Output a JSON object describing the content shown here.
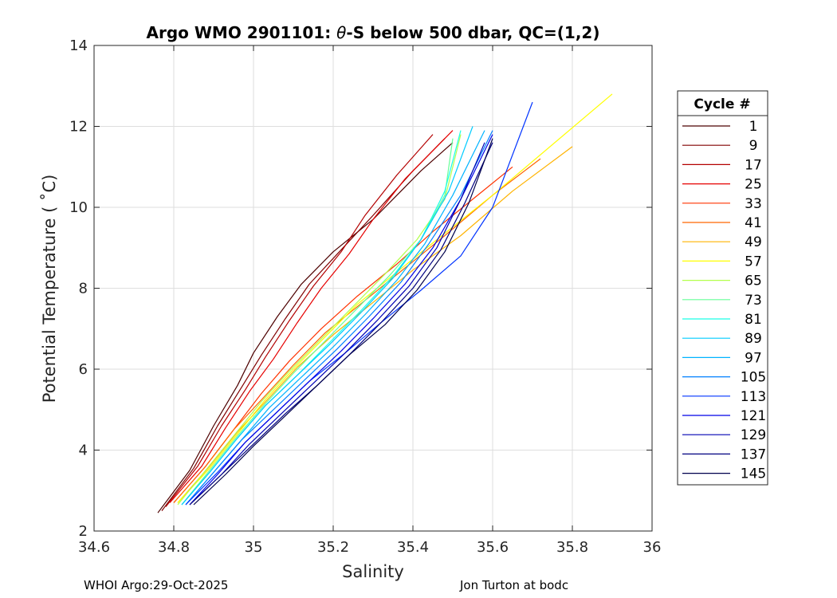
{
  "chart_data": {
    "type": "line",
    "title": "Argo WMO 2901101: θ-S below 500 dbar,  QC=(1,2)",
    "title_main": "Argo WMO 2901101: ",
    "title_theta": "θ",
    "title_rest": "-S below 500 dbar,  QC=(1,2)",
    "xlabel": "Salinity",
    "ylabel": "Potential Temperature ( ˚C)",
    "xlim": [
      34.6,
      36.0
    ],
    "ylim": [
      2,
      14
    ],
    "xticks": [
      34.6,
      34.8,
      35.0,
      35.2,
      35.4,
      35.6,
      35.8,
      36.0
    ],
    "xtick_labels": [
      "34.6",
      "34.8",
      "35",
      "35.2",
      "35.4",
      "35.6",
      "35.8",
      "36"
    ],
    "yticks": [
      2,
      4,
      6,
      8,
      10,
      12,
      14
    ],
    "ytick_labels": [
      "2",
      "4",
      "6",
      "8",
      "10",
      "12",
      "14"
    ],
    "grid": true,
    "colormap": "jet",
    "legend": {
      "title": "Cycle #",
      "position": "right-outside",
      "entries": [
        "1",
        "9",
        "17",
        "25",
        "33",
        "41",
        "49",
        "57",
        "65",
        "73",
        "81",
        "89",
        "97",
        "105",
        "113",
        "121",
        "129",
        "137",
        "145"
      ],
      "colors": [
        "#4d0000",
        "#800000",
        "#b30000",
        "#e60000",
        "#ff3300",
        "#ff6600",
        "#ffb300",
        "#ffff00",
        "#b3ff4d",
        "#66ff99",
        "#1affe6",
        "#00ccff",
        "#00b3ff",
        "#0080ff",
        "#0033ff",
        "#0000e6",
        "#0000b3",
        "#000080",
        "#00004d"
      ]
    },
    "series": [
      {
        "name": "1",
        "salinity": [
          34.76,
          34.84,
          34.9,
          34.96,
          35.0,
          35.06,
          35.12,
          35.2,
          35.3,
          35.42,
          35.5
        ],
        "theta": [
          2.45,
          3.5,
          4.6,
          5.6,
          6.4,
          7.3,
          8.1,
          8.9,
          9.7,
          10.9,
          11.6
        ]
      },
      {
        "name": "9",
        "salinity": [
          34.77,
          34.85,
          34.91,
          34.97,
          35.02,
          35.08,
          35.14,
          35.22,
          35.3,
          35.4,
          35.48
        ],
        "theta": [
          2.5,
          3.55,
          4.6,
          5.55,
          6.35,
          7.25,
          8.1,
          8.95,
          9.8,
          10.9,
          11.7
        ]
      },
      {
        "name": "17",
        "salinity": [
          34.78,
          34.86,
          34.92,
          34.98,
          35.03,
          35.09,
          35.15,
          35.22,
          35.28,
          35.36,
          35.45
        ],
        "theta": [
          2.6,
          3.6,
          4.6,
          5.5,
          6.3,
          7.2,
          8.05,
          8.9,
          9.8,
          10.8,
          11.8
        ]
      },
      {
        "name": "25",
        "salinity": [
          34.79,
          34.87,
          34.93,
          34.99,
          35.05,
          35.11,
          35.17,
          35.24,
          35.3,
          35.38,
          35.5
        ],
        "theta": [
          2.7,
          3.6,
          4.55,
          5.45,
          6.25,
          7.15,
          8.0,
          8.85,
          9.7,
          10.7,
          11.9
        ]
      },
      {
        "name": "33",
        "salinity": [
          34.8,
          34.88,
          34.95,
          35.02,
          35.09,
          35.17,
          35.26,
          35.36,
          35.45,
          35.55,
          35.65
        ],
        "theta": [
          2.7,
          3.6,
          4.5,
          5.4,
          6.2,
          7.0,
          7.8,
          8.6,
          9.4,
          10.2,
          11.0
        ]
      },
      {
        "name": "41",
        "salinity": [
          34.8,
          34.88,
          34.95,
          35.03,
          35.1,
          35.18,
          35.28,
          35.38,
          35.48,
          35.6,
          35.72
        ],
        "theta": [
          2.7,
          3.6,
          4.5,
          5.35,
          6.1,
          6.9,
          7.7,
          8.5,
          9.3,
          10.3,
          11.2
        ]
      },
      {
        "name": "49",
        "salinity": [
          34.81,
          34.89,
          34.96,
          35.04,
          35.11,
          35.2,
          35.3,
          35.4,
          35.52,
          35.65,
          35.8
        ],
        "theta": [
          2.7,
          3.6,
          4.45,
          5.3,
          6.05,
          6.85,
          7.65,
          8.45,
          9.3,
          10.4,
          11.5
        ]
      },
      {
        "name": "57",
        "salinity": [
          34.81,
          34.89,
          34.96,
          35.03,
          35.1,
          35.18,
          35.26,
          35.36,
          35.46,
          35.6,
          35.9
        ],
        "theta": [
          2.7,
          3.55,
          4.4,
          5.25,
          6.0,
          6.8,
          7.6,
          8.4,
          9.2,
          10.3,
          12.8
        ]
      },
      {
        "name": "65",
        "salinity": [
          34.81,
          34.88,
          34.95,
          35.02,
          35.09,
          35.17,
          35.25,
          35.33,
          35.41,
          35.48,
          35.52
        ],
        "theta": [
          2.65,
          3.5,
          4.35,
          5.2,
          5.95,
          6.75,
          7.55,
          8.35,
          9.2,
          10.2,
          11.8
        ]
      },
      {
        "name": "73",
        "salinity": [
          34.82,
          34.89,
          34.96,
          35.03,
          35.1,
          35.18,
          35.26,
          35.34,
          35.42,
          35.48,
          35.5
        ],
        "theta": [
          2.65,
          3.5,
          4.35,
          5.15,
          5.9,
          6.7,
          7.5,
          8.3,
          9.2,
          10.3,
          11.7
        ]
      },
      {
        "name": "81",
        "salinity": [
          34.82,
          34.89,
          34.96,
          35.03,
          35.11,
          35.19,
          35.27,
          35.35,
          35.42,
          35.48,
          35.52
        ],
        "theta": [
          2.65,
          3.45,
          4.3,
          5.1,
          5.85,
          6.65,
          7.45,
          8.3,
          9.2,
          10.4,
          11.9
        ]
      },
      {
        "name": "89",
        "salinity": [
          34.82,
          34.89,
          34.96,
          35.03,
          35.11,
          35.19,
          35.27,
          35.35,
          35.42,
          35.49,
          35.55
        ],
        "theta": [
          2.65,
          3.45,
          4.3,
          5.1,
          5.85,
          6.6,
          7.4,
          8.25,
          9.2,
          10.4,
          12.0
        ]
      },
      {
        "name": "97",
        "salinity": [
          34.83,
          34.9,
          34.97,
          35.04,
          35.12,
          35.2,
          35.28,
          35.36,
          35.43,
          35.5,
          35.58
        ],
        "theta": [
          2.65,
          3.45,
          4.25,
          5.05,
          5.8,
          6.55,
          7.35,
          8.2,
          9.1,
          10.3,
          11.9
        ]
      },
      {
        "name": "105",
        "salinity": [
          34.83,
          34.9,
          34.97,
          35.05,
          35.13,
          35.21,
          35.29,
          35.37,
          35.44,
          35.52,
          35.6
        ],
        "theta": [
          2.65,
          3.45,
          4.25,
          5.0,
          5.75,
          6.5,
          7.3,
          8.15,
          9.1,
          10.3,
          11.9
        ]
      },
      {
        "name": "113",
        "salinity": [
          34.83,
          34.91,
          34.98,
          35.06,
          35.14,
          35.23,
          35.32,
          35.42,
          35.52,
          35.6,
          35.7
        ],
        "theta": [
          2.65,
          3.45,
          4.2,
          4.95,
          5.7,
          6.4,
          7.15,
          7.95,
          8.8,
          10.0,
          12.6
        ]
      },
      {
        "name": "121",
        "salinity": [
          34.84,
          34.91,
          34.98,
          35.06,
          35.14,
          35.22,
          35.3,
          35.38,
          35.45,
          35.52,
          35.6
        ],
        "theta": [
          2.65,
          3.4,
          4.2,
          4.95,
          5.7,
          6.45,
          7.25,
          8.1,
          9.0,
          10.2,
          11.8
        ]
      },
      {
        "name": "129",
        "salinity": [
          34.84,
          34.92,
          34.99,
          35.07,
          35.15,
          35.23,
          35.31,
          35.39,
          35.46,
          35.52,
          35.58
        ],
        "theta": [
          2.65,
          3.4,
          4.15,
          4.9,
          5.65,
          6.4,
          7.2,
          8.05,
          9.0,
          10.2,
          11.6
        ]
      },
      {
        "name": "137",
        "salinity": [
          34.84,
          34.92,
          35.0,
          35.08,
          35.16,
          35.24,
          35.32,
          35.4,
          35.47,
          35.53,
          35.6
        ],
        "theta": [
          2.65,
          3.4,
          4.15,
          4.9,
          5.6,
          6.35,
          7.15,
          8.0,
          8.95,
          10.1,
          11.6
        ]
      },
      {
        "name": "145",
        "salinity": [
          34.85,
          34.93,
          35.0,
          35.08,
          35.16,
          35.24,
          35.33,
          35.41,
          35.48,
          35.54,
          35.6
        ],
        "theta": [
          2.65,
          3.4,
          4.1,
          4.85,
          5.6,
          6.35,
          7.1,
          7.95,
          8.9,
          10.1,
          11.7
        ]
      }
    ]
  },
  "footer": {
    "left": "WHOI Argo:29-Oct-2025",
    "right": "Jon Turton at bodc"
  }
}
